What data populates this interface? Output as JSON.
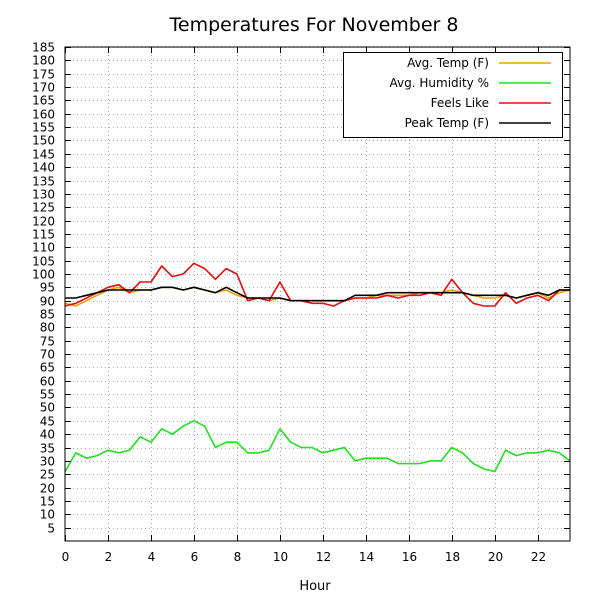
{
  "chart_data": {
    "type": "line",
    "title": "Temperatures For November 8",
    "xlabel": "Hour",
    "ylabel": "",
    "xlim": [
      0,
      23.5
    ],
    "ylim": [
      0,
      185
    ],
    "x_ticks": [
      0,
      2,
      4,
      6,
      8,
      10,
      12,
      14,
      16,
      18,
      20,
      22
    ],
    "y_ticks": [
      5,
      10,
      15,
      20,
      25,
      30,
      35,
      40,
      45,
      50,
      55,
      60,
      65,
      70,
      75,
      80,
      85,
      90,
      95,
      100,
      105,
      110,
      115,
      120,
      125,
      130,
      135,
      140,
      145,
      150,
      155,
      160,
      165,
      170,
      175,
      180,
      185
    ],
    "grid": true,
    "legend_position": "top-right",
    "x": [
      0,
      0.5,
      1,
      1.5,
      2,
      2.5,
      3,
      3.5,
      4,
      4.5,
      5,
      5.5,
      6,
      6.5,
      7,
      7.5,
      8,
      8.5,
      9,
      9.5,
      10,
      10.5,
      11,
      11.5,
      12,
      12.5,
      13,
      13.5,
      14,
      14.5,
      15,
      15.5,
      16,
      16.5,
      17,
      17.5,
      18,
      18.5,
      19,
      19.5,
      20,
      20.5,
      21,
      21.5,
      22,
      22.5,
      23,
      23.5
    ],
    "series": [
      {
        "name": "Avg. Temp (F)",
        "color": "#f0a000",
        "values": [
          89,
          88,
          90,
          92,
          94,
          95,
          93,
          94,
          94,
          95,
          95,
          94,
          95,
          94,
          93,
          94,
          92,
          91,
          91,
          90,
          91,
          90,
          90,
          90,
          90,
          90,
          90,
          91,
          91,
          92,
          92,
          92,
          92,
          93,
          93,
          93,
          94,
          93,
          92,
          91,
          91,
          92,
          91,
          92,
          93,
          91,
          93,
          94
        ]
      },
      {
        "name": "Avg. Humidity %",
        "color": "#20e020",
        "values": [
          26,
          33,
          31,
          32,
          34,
          33,
          34,
          39,
          37,
          42,
          40,
          43,
          45,
          43,
          35,
          37,
          37,
          33,
          33,
          34,
          42,
          37,
          35,
          35,
          33,
          34,
          35,
          30,
          31,
          31,
          31,
          29,
          29,
          29,
          30,
          30,
          35,
          33,
          29,
          27,
          26,
          34,
          32,
          33,
          33,
          34,
          33,
          30
        ]
      },
      {
        "name": "Feels Like",
        "color": "#e01010",
        "values": [
          88,
          89,
          91,
          93,
          95,
          96,
          93,
          97,
          97,
          103,
          99,
          100,
          104,
          102,
          98,
          102,
          100,
          90,
          91,
          90,
          97,
          90,
          90,
          89,
          89,
          88,
          90,
          91,
          91,
          91,
          92,
          91,
          92,
          92,
          93,
          92,
          98,
          93,
          89,
          88,
          88,
          93,
          89,
          91,
          92,
          90,
          94,
          94
        ]
      },
      {
        "name": "Peak Temp (F)",
        "color": "#000000",
        "values": [
          91,
          91,
          92,
          93,
          94,
          94,
          94,
          94,
          94,
          95,
          95,
          94,
          95,
          94,
          93,
          95,
          93,
          91,
          91,
          91,
          91,
          90,
          90,
          90,
          90,
          90,
          90,
          92,
          92,
          92,
          93,
          93,
          93,
          93,
          93,
          93,
          93,
          93,
          92,
          92,
          92,
          92,
          91,
          92,
          93,
          92,
          94,
          94
        ]
      }
    ]
  }
}
